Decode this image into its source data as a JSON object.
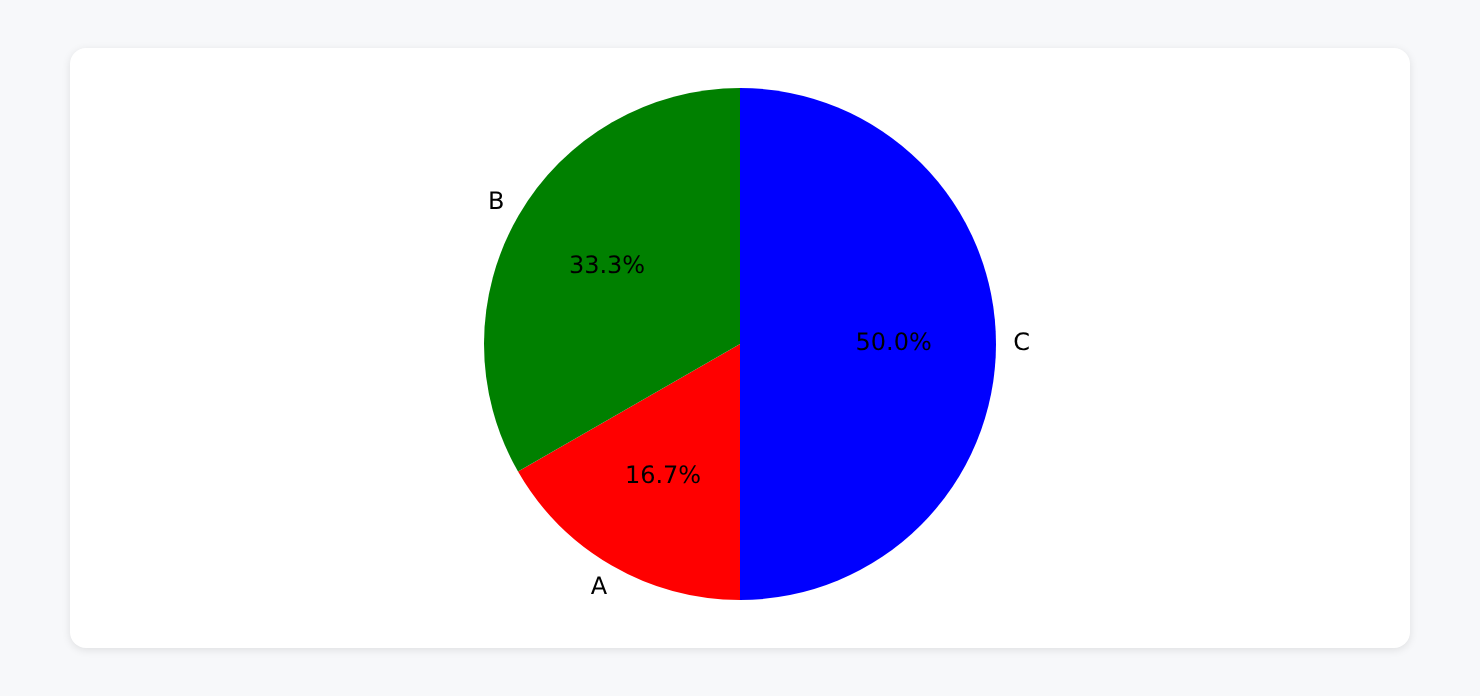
{
  "chart_data": {
    "type": "pie",
    "categories": [
      "A",
      "B",
      "C"
    ],
    "values": [
      16.7,
      33.3,
      50.0
    ],
    "colors": [
      "#ff0000",
      "#008000",
      "#0000ff"
    ],
    "value_labels": [
      "16.7%",
      "33.3%",
      "50.0%"
    ],
    "legend": false
  }
}
